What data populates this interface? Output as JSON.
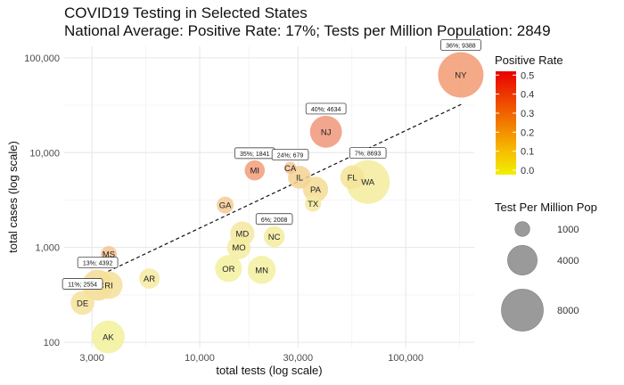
{
  "chart_data": {
    "type": "scatter",
    "title": "COVID19 Testing in Selected States",
    "subtitle": "National Average: Positive Rate: 17%; Tests per Million Population: 2849",
    "xlabel": "total tests (log scale)",
    "ylabel": "total cases (log scale)",
    "x_scale": "log",
    "y_scale": "log",
    "xlim": [
      2200,
      215000
    ],
    "ylim": [
      88,
      132000
    ],
    "x_ticks": [
      {
        "value": 3000,
        "label": "3,000"
      },
      {
        "value": 10000,
        "label": "10,000"
      },
      {
        "value": 30000,
        "label": "30,000"
      },
      {
        "value": 100000,
        "label": "100,000"
      }
    ],
    "y_ticks": [
      {
        "value": 100,
        "label": "100"
      },
      {
        "value": 1000,
        "label": "1,000"
      },
      {
        "value": 10000,
        "label": "10,000"
      },
      {
        "value": 100000,
        "label": "100,000"
      }
    ],
    "grid": true,
    "trend_line": {
      "style": "dashed",
      "from": [
        3600,
        560
      ],
      "to": [
        190000,
        33000
      ]
    },
    "color_legend": {
      "title": "Positive Rate",
      "ticks": [
        "0.0",
        "0.1",
        "0.2",
        "0.3",
        "0.4",
        "0.5"
      ],
      "gradient": [
        "#f2ef00",
        "#f6b800",
        "#f27a00",
        "#ee3d00",
        "#e80000"
      ]
    },
    "size_legend": {
      "title": "Test Per Million Pop",
      "entries": [
        {
          "value": 1000,
          "label": "1000"
        },
        {
          "value": 4000,
          "label": "4000"
        },
        {
          "value": 8000,
          "label": "8000"
        }
      ]
    },
    "points": [
      {
        "state": "NY",
        "tests": 185000,
        "cases": 66000,
        "positive_rate": 0.36,
        "tests_per_million": 9388,
        "color": "#f29a72",
        "label": "36%; 9388"
      },
      {
        "state": "NJ",
        "tests": 41000,
        "cases": 16600,
        "positive_rate": 0.4,
        "tests_per_million": 4634,
        "color": "#f0967a",
        "label": "40%; 4634"
      },
      {
        "state": "MI",
        "tests": 18500,
        "cases": 6500,
        "positive_rate": 0.35,
        "tests_per_million": 1841,
        "color": "#f29c7a",
        "label": "35%; 1841"
      },
      {
        "state": "CA",
        "tests": 27500,
        "cases": 6900,
        "positive_rate": 0.24,
        "tests_per_million": 679,
        "color": "#f5c59a",
        "label": "24%; 679"
      },
      {
        "state": "IL",
        "tests": 30500,
        "cases": 5500,
        "positive_rate": 0.18,
        "tests_per_million": 2400,
        "color": "#f5d292"
      },
      {
        "state": "FL",
        "tests": 55000,
        "cases": 5500,
        "positive_rate": 0.1,
        "tests_per_million": 2600,
        "color": "#f3e49a"
      },
      {
        "state": "WA",
        "tests": 65500,
        "cases": 4900,
        "positive_rate": 0.07,
        "tests_per_million": 8693,
        "color": "#f3ec9c",
        "label": "7%; 8693"
      },
      {
        "state": "PA",
        "tests": 36500,
        "cases": 4100,
        "positive_rate": 0.12,
        "tests_per_million": 2900,
        "color": "#f5dc94"
      },
      {
        "state": "TX",
        "tests": 35500,
        "cases": 2900,
        "positive_rate": 0.08,
        "tests_per_million": 1200,
        "color": "#f4e9a0"
      },
      {
        "state": "GA",
        "tests": 13300,
        "cases": 2800,
        "positive_rate": 0.21,
        "tests_per_million": 1300,
        "color": "#f5cb94"
      },
      {
        "state": "MD",
        "tests": 16100,
        "cases": 1400,
        "positive_rate": 0.09,
        "tests_per_million": 2700,
        "color": "#f4e7a0"
      },
      {
        "state": "NC",
        "tests": 23000,
        "cases": 1300,
        "positive_rate": 0.06,
        "tests_per_million": 2008,
        "color": "#f4ec9e",
        "label": "6%; 2008"
      },
      {
        "state": "MO",
        "tests": 15500,
        "cases": 1000,
        "positive_rate": 0.07,
        "tests_per_million": 2500,
        "color": "#f4eca0"
      },
      {
        "state": "MS",
        "tests": 3620,
        "cases": 850,
        "positive_rate": 0.23,
        "tests_per_million": 1200,
        "color": "#f5c492"
      },
      {
        "state": "OR",
        "tests": 13800,
        "cases": 600,
        "positive_rate": 0.04,
        "tests_per_million": 3300,
        "color": "#f3f09e"
      },
      {
        "state": "MN",
        "tests": 20000,
        "cases": 580,
        "positive_rate": 0.03,
        "tests_per_million": 3600,
        "color": "#f3f0a0"
      },
      {
        "state": "AR",
        "tests": 5700,
        "cases": 470,
        "positive_rate": 0.08,
        "tests_per_million": 1900,
        "color": "#f4eaa0"
      },
      {
        "state": "DC",
        "tests": 3200,
        "cases": 400,
        "positive_rate": 0.13,
        "tests_per_million": 4392,
        "color": "#f5da96",
        "label": "13%; 4392"
      },
      {
        "state": "RI",
        "tests": 3620,
        "cases": 400,
        "positive_rate": 0.11,
        "tests_per_million": 3500,
        "color": "#f5e19a"
      },
      {
        "state": "DE",
        "tests": 2700,
        "cases": 260,
        "positive_rate": 0.11,
        "tests_per_million": 2554,
        "color": "#f5e29a",
        "label": "11%; 2554"
      },
      {
        "state": "AK",
        "tests": 3600,
        "cases": 114,
        "positive_rate": 0.03,
        "tests_per_million": 4900,
        "color": "#f3f09a"
      }
    ]
  }
}
